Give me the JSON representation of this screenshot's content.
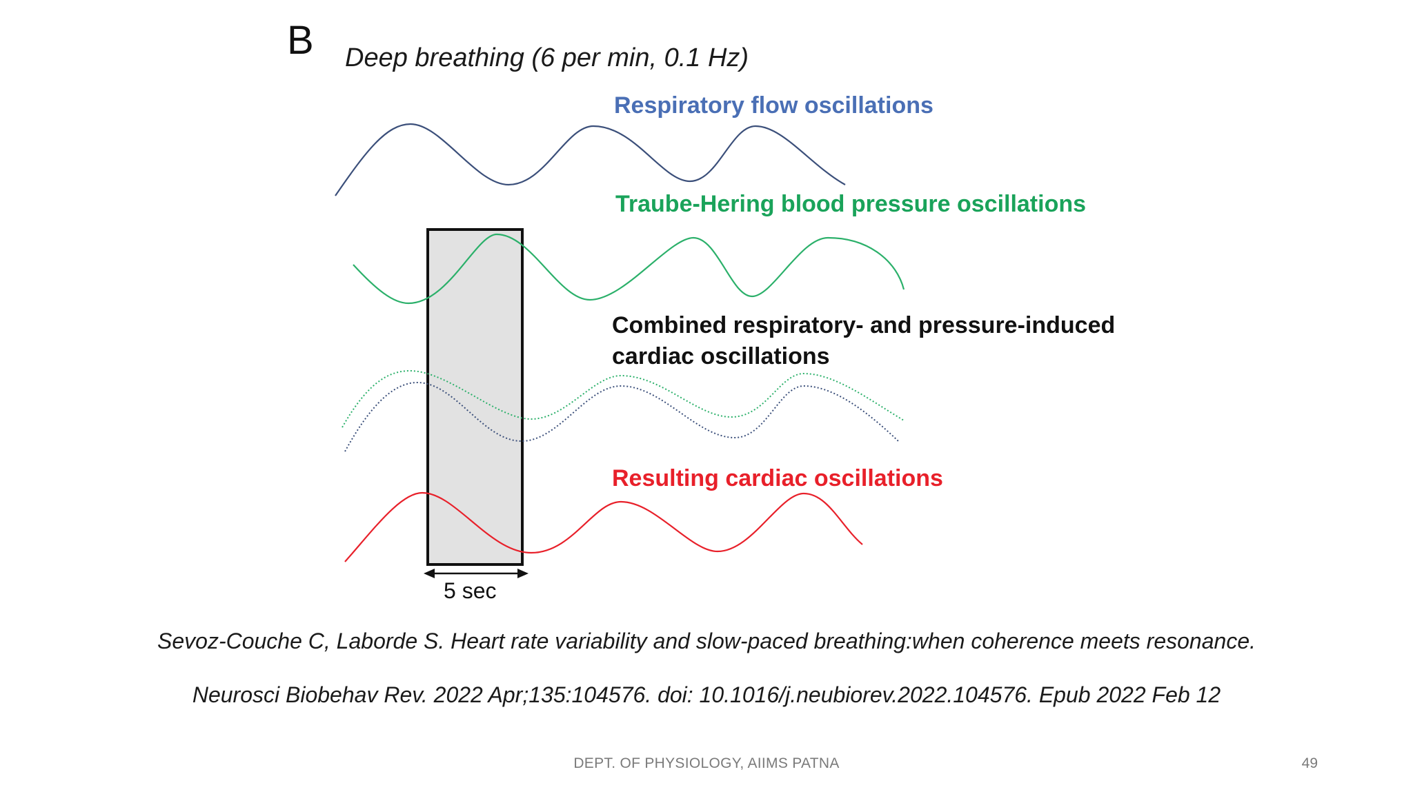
{
  "figure": {
    "panel_letter": "B",
    "subtitle": "Deep breathing (6 per min, 0.1 Hz)",
    "waves": [
      {
        "label": "Respiratory flow oscillations",
        "color": "#4a6fb5",
        "line": "solid",
        "stroke_color": "#3b4f7a"
      },
      {
        "label": "Traube-Hering blood pressure oscillations",
        "color": "#1aa35a",
        "line": "solid",
        "stroke_color": "#2bb06a"
      },
      {
        "label_line1": "Combined respiratory- and pressure-induced",
        "label_line2": "cardiac oscillations",
        "color": "#111111",
        "line": "dotted",
        "stroke_colors": [
          "#2bb06a",
          "#3b4f7a"
        ]
      },
      {
        "label": "Resulting cardiac oscillations",
        "color": "#e8202a",
        "line": "solid",
        "stroke_color": "#e8202a"
      }
    ],
    "window_label": "5 sec",
    "window_fill": "#e2e2e2"
  },
  "citation": {
    "line1": "Sevoz-Couche C, Laborde S. Heart rate variability and slow-paced breathing:when coherence meets resonance.",
    "line2": "Neurosci Biobehav Rev. 2022 Apr;135:104576. doi: 10.1016/j.neubiorev.2022.104576. Epub 2022 Feb 12"
  },
  "footer": {
    "department": "DEPT. OF PHYSIOLOGY, AIIMS PATNA",
    "page_number": "49"
  }
}
